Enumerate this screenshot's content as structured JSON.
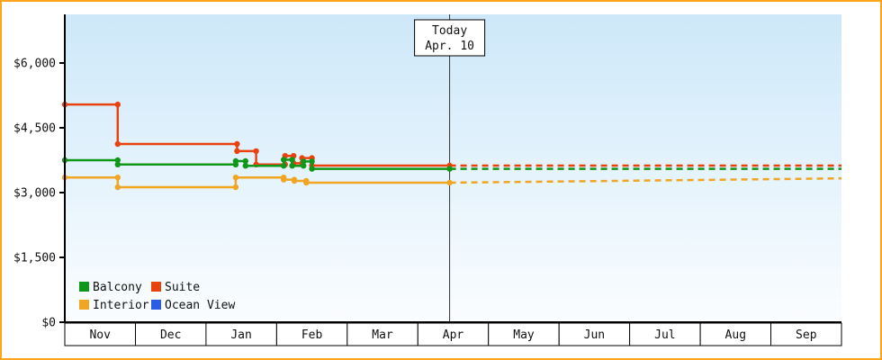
{
  "legend": [
    "Balcony",
    "Suite",
    "Interior",
    "Ocean View"
  ],
  "today_box": {
    "label": "Today",
    "date": "Apr. 10"
  },
  "colors": {
    "frame_border": "#ffa41c",
    "plot_bg_top": "#cde8f9",
    "plot_bg_bottom": "#fbfdff",
    "axis": "#000000",
    "today_line": "#333333",
    "month_cell_bg": "#ffffff"
  },
  "chart_data": {
    "type": "line",
    "title": "",
    "x_axis": {
      "months": [
        "Nov",
        "Dec",
        "Jan",
        "Feb",
        "Mar",
        "Apr",
        "May",
        "Jun",
        "Jul",
        "Aug",
        "Sep"
      ],
      "x_unit": "months since Nov start (0 = Nov 1, 11 = end of Sep)"
    },
    "y_axis": {
      "ticks": [
        0,
        1500,
        3000,
        4500,
        6000
      ],
      "tick_labels": [
        "$0",
        "$1,500",
        "$3,000",
        "$4,500",
        "$6,000"
      ],
      "range": [
        0,
        7150
      ]
    },
    "today_marker": {
      "label": "Today",
      "date": "Apr. 10",
      "month_position": 5.45
    },
    "series": [
      {
        "name": "Balcony",
        "color": "#109618",
        "solid": [
          [
            0,
            3750
          ],
          [
            0.75,
            3750
          ],
          [
            0.75,
            3650
          ],
          [
            2.42,
            3650
          ],
          [
            2.42,
            3730
          ],
          [
            2.56,
            3730
          ],
          [
            2.56,
            3620
          ],
          [
            3.1,
            3620
          ],
          [
            3.1,
            3760
          ],
          [
            3.22,
            3760
          ],
          [
            3.22,
            3620
          ],
          [
            3.38,
            3620
          ],
          [
            3.38,
            3720
          ],
          [
            3.5,
            3720
          ],
          [
            3.5,
            3550
          ],
          [
            5.45,
            3550
          ]
        ],
        "forecast_dashed": [
          [
            5.45,
            3550
          ],
          [
            11,
            3550
          ]
        ]
      },
      {
        "name": "Suite",
        "color": "#e8430e",
        "solid": [
          [
            0,
            5040
          ],
          [
            0.75,
            5040
          ],
          [
            0.75,
            4125
          ],
          [
            2.44,
            4125
          ],
          [
            2.44,
            3960
          ],
          [
            2.71,
            3960
          ],
          [
            2.71,
            3650
          ],
          [
            3.12,
            3650
          ],
          [
            3.12,
            3850
          ],
          [
            3.24,
            3850
          ],
          [
            3.24,
            3680
          ],
          [
            3.36,
            3680
          ],
          [
            3.36,
            3800
          ],
          [
            3.5,
            3800
          ],
          [
            3.5,
            3625
          ],
          [
            5.45,
            3625
          ]
        ],
        "forecast_dashed": [
          [
            5.45,
            3625
          ],
          [
            11,
            3625
          ]
        ]
      },
      {
        "name": "Interior",
        "color": "#f0a622",
        "solid": [
          [
            0,
            3350
          ],
          [
            0.75,
            3350
          ],
          [
            0.75,
            3125
          ],
          [
            2.42,
            3125
          ],
          [
            2.42,
            3350
          ],
          [
            3.1,
            3350
          ],
          [
            3.1,
            3300
          ],
          [
            3.25,
            3300
          ],
          [
            3.25,
            3270
          ],
          [
            3.42,
            3270
          ],
          [
            3.42,
            3230
          ],
          [
            5.45,
            3230
          ]
        ],
        "forecast_dashed": [
          [
            5.45,
            3230
          ],
          [
            11,
            3330
          ]
        ]
      },
      {
        "name": "Ocean View",
        "color": "#2b5ce6",
        "solid": [],
        "forecast_dashed": []
      }
    ],
    "legend_position": "bottom-left-inside",
    "grid": false
  }
}
